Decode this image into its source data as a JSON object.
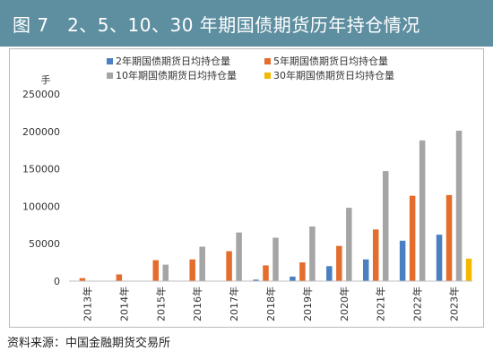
{
  "header": {
    "title": "图 7　2、5、10、30 年期国债期货历年持仓情况"
  },
  "source_note": "资料来源：中国金融期货交易所",
  "colors": {
    "header_bg": "#5e8fa1",
    "series_2y": "#4a7fc1",
    "series_5y": "#e46c2c",
    "series_10y": "#a5a5a5",
    "series_30y": "#f5b800"
  },
  "chart_data": {
    "type": "bar",
    "title": "",
    "ylabel": "手",
    "xlabel": "",
    "ylim": [
      0,
      250000
    ],
    "yticks": [
      0,
      50000,
      100000,
      150000,
      200000,
      250000
    ],
    "ytick_labels": [
      "0",
      "50000",
      "100000",
      "150000",
      "200000",
      "250000"
    ],
    "grid": false,
    "legend_position": "top",
    "categories": [
      "2013年",
      "2014年",
      "2015年",
      "2016年",
      "2017年",
      "2018年",
      "2019年",
      "2020年",
      "2021年",
      "2022年",
      "2023年"
    ],
    "series": [
      {
        "name": "2年期国债期货日均持仓量",
        "color": "#4a7fc1",
        "values": [
          0,
          0,
          0,
          0,
          0,
          2000,
          6000,
          20000,
          29000,
          54000,
          62000
        ]
      },
      {
        "name": "5年期国债期货日均持仓量",
        "color": "#e46c2c",
        "values": [
          4000,
          9000,
          28000,
          29000,
          40000,
          21000,
          25000,
          47000,
          69000,
          114000,
          115000
        ]
      },
      {
        "name": "10年期国债期货日均持仓量",
        "color": "#a5a5a5",
        "values": [
          0,
          0,
          22000,
          46000,
          65000,
          58000,
          73000,
          98000,
          147000,
          188000,
          201000
        ]
      },
      {
        "name": "30年期国债期货日均持仓量",
        "color": "#f5b800",
        "values": [
          0,
          0,
          0,
          0,
          0,
          0,
          0,
          0,
          0,
          0,
          30000
        ]
      }
    ]
  }
}
